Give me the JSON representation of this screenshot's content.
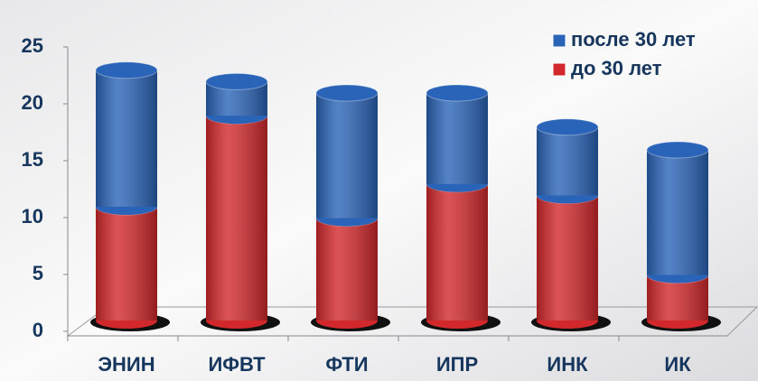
{
  "chart_data": {
    "type": "bar",
    "stacked": true,
    "categories": [
      "ЭНИН",
      "ИФВТ",
      "ФТИ",
      "ИПР",
      "ИНК",
      "ИК"
    ],
    "series": [
      {
        "name": "до 30 лет",
        "color": "#d2282c",
        "values": [
          10,
          18,
          9,
          12,
          11,
          4
        ]
      },
      {
        "name": "после 30 лет",
        "color": "#2a64b8",
        "values": [
          12,
          3,
          11,
          8,
          6,
          11
        ]
      }
    ],
    "ylim": [
      0,
      25
    ],
    "yticks": [
      0,
      5,
      10,
      15,
      20,
      25
    ],
    "legend": "top-right"
  }
}
